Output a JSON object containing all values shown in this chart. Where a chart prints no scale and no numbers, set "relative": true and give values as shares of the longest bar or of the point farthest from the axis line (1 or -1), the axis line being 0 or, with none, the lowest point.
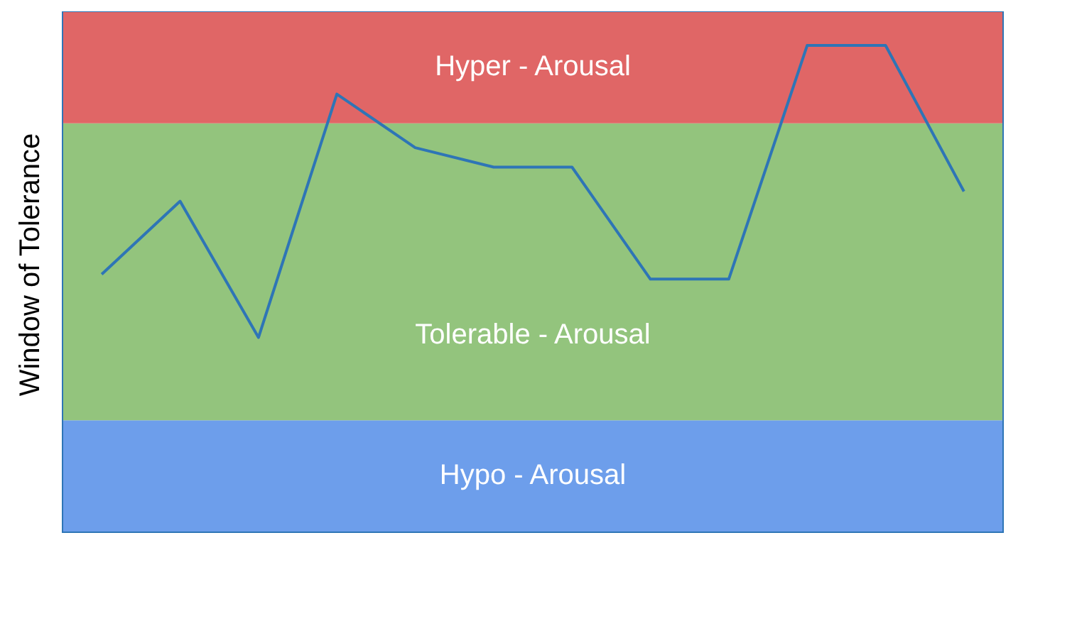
{
  "chart_data": {
    "type": "line",
    "relative": true,
    "ylabel": "Window of Tolerance",
    "categories": [
      null,
      null,
      null,
      null,
      null,
      null,
      null,
      null,
      null,
      null,
      null,
      null
    ],
    "series": [
      {
        "color": "#2e75b6",
        "values": [
          0.53,
          0.68,
          0.4,
          0.9,
          0.79,
          0.75,
          0.75,
          0.52,
          0.52,
          1,
          1,
          0.7
        ]
      }
    ],
    "bands": [
      {
        "axis": "y",
        "from": 0,
        "to": 0.23,
        "label": "Hypo - Arousal",
        "color": "#6d9eeb"
      },
      {
        "axis": "y",
        "from": 0.23,
        "to": 0.84,
        "label": "Tolerable - Arousal",
        "color": "#93c47d"
      },
      {
        "axis": "y",
        "from": 0.84,
        "to": 1.07,
        "label": "Hyper - Arousal",
        "color": "#e06666"
      }
    ],
    "legend": false,
    "grid": false,
    "marker": "none",
    "line_style": "solid"
  }
}
